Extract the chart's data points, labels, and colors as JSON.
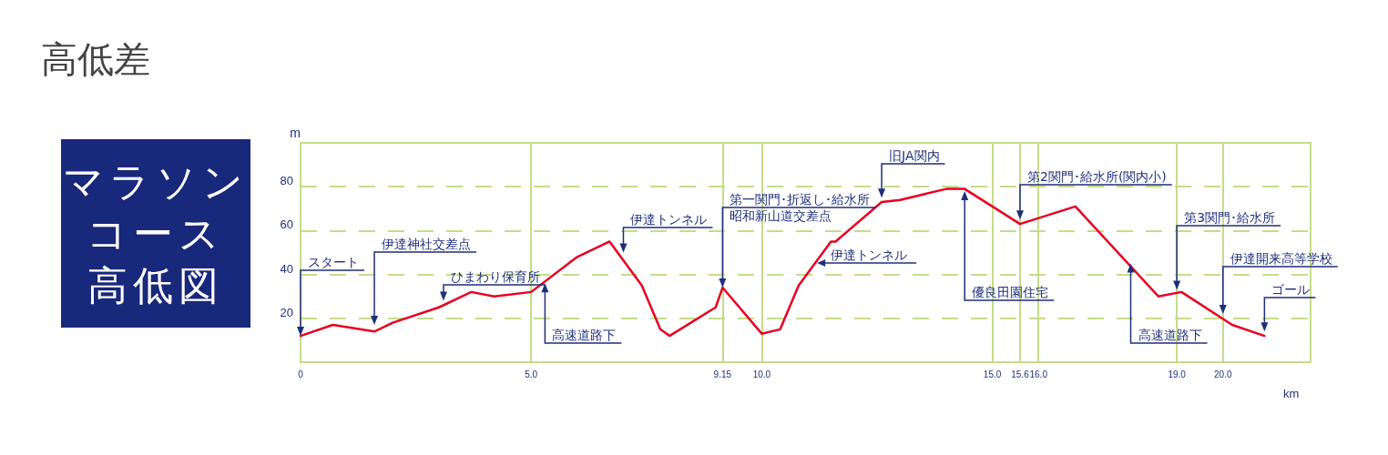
{
  "chart_data": {
    "type": "line",
    "title": "高低差",
    "subtitle": "マラソンコース高低図",
    "xlabel": "km",
    "ylabel": "m",
    "x": [
      0,
      0.7,
      1.6,
      2.0,
      3.0,
      3.7,
      4.2,
      5.0,
      6.0,
      6.7,
      7.4,
      7.8,
      8.0,
      9.0,
      9.15,
      10.0,
      10.4,
      10.8,
      11.5,
      11.6,
      12.6,
      13.0,
      14.0,
      14.4,
      15.6,
      16.8,
      18.6,
      19.1,
      20.2,
      20.9
    ],
    "series": [
      {
        "color": "#e60020",
        "values": [
          12,
          17,
          14,
          18,
          25,
          32,
          30,
          32,
          48,
          55,
          35,
          15,
          12,
          25,
          34,
          13,
          15,
          35,
          55,
          55,
          73,
          74,
          79,
          79,
          63,
          71,
          30,
          32,
          17,
          12
        ]
      }
    ],
    "xlim": [
      0,
      21.9
    ],
    "xticks": [
      0,
      {
        "value": 5,
        "label": "5.0"
      },
      9.15,
      {
        "value": 10,
        "label": "10.0"
      },
      {
        "value": 15,
        "label": "15.0"
      },
      15.6,
      {
        "value": 16,
        "label": "16.0"
      },
      {
        "value": 19,
        "label": "19.0"
      },
      {
        "value": 20,
        "label": "20.0"
      }
    ],
    "ylim": [
      0,
      100
    ],
    "yticks": [
      {
        "value": 0,
        "label": null
      },
      20,
      40,
      60,
      80
    ],
    "grid": true,
    "marker": "none",
    "line_style": "solid",
    "annotations": [
      {
        "text": "スタート",
        "x": 0,
        "y": 12
      },
      {
        "text": "伊達神社交差点",
        "x": 1.6,
        "y": 17
      },
      {
        "text": "ひまわり保育所",
        "x": 3.1,
        "y": 28
      },
      {
        "text": "高速道路下",
        "x": 5.3,
        "y": 36
      },
      {
        "text": "伊達トンネル",
        "x": 7.0,
        "y": 50
      },
      {
        "text": "第一関門･折返し･給水所",
        "x": 9.15,
        "y": 34
      },
      {
        "text": "昭和新山道交差点",
        "x": 9.15,
        "y": 34
      },
      {
        "text": "伊達トンネル",
        "x": 11.2,
        "y": 48
      },
      {
        "text": "旧JA関内",
        "x": 12.6,
        "y": 75
      },
      {
        "text": "優良田園住宅",
        "x": 14.4,
        "y": 78
      },
      {
        "text": "第2関門･給水所(関内小)",
        "x": 15.6,
        "y": 65
      },
      {
        "text": "高速道路下",
        "x": 18.0,
        "y": 45
      },
      {
        "text": "第3関門･給水所",
        "x": 19.0,
        "y": 33
      },
      {
        "text": "伊達開来高等学校",
        "x": 20.0,
        "y": 22
      },
      {
        "text": "ゴール",
        "x": 20.9,
        "y": 14
      }
    ]
  }
}
